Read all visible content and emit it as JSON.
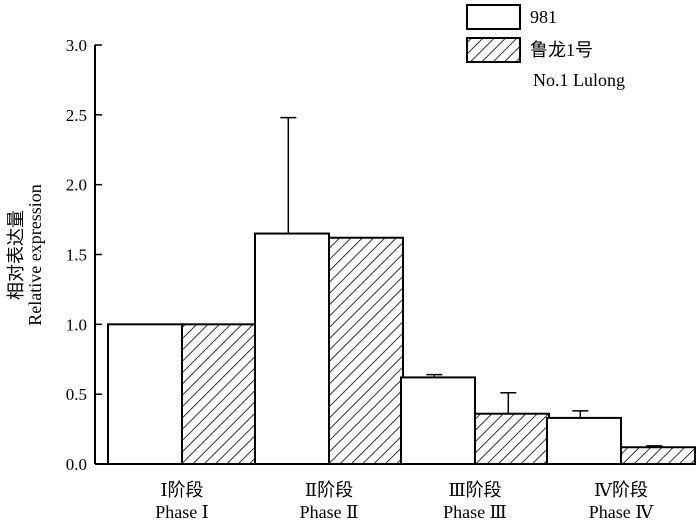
{
  "chart_data": {
    "type": "bar",
    "categories": [
      {
        "line1": "Ⅰ阶段",
        "line2": "Phase Ⅰ"
      },
      {
        "line1": "Ⅱ阶段",
        "line2": "Phase Ⅱ"
      },
      {
        "line1": "Ⅲ阶段",
        "line2": "Phase Ⅲ"
      },
      {
        "line1": "Ⅳ阶段",
        "line2": "Phase Ⅳ"
      }
    ],
    "series": [
      {
        "name": "981",
        "fill": "open",
        "values": [
          1.0,
          1.65,
          0.62,
          0.33
        ],
        "errors": [
          0.0,
          0.83,
          0.02,
          0.05
        ]
      },
      {
        "name": "鲁龙1号",
        "name_line2": "No.1 Lulong",
        "fill": "hatched",
        "values": [
          1.0,
          1.62,
          0.36,
          0.12
        ],
        "errors": [
          0.0,
          0.0,
          0.15,
          0.01
        ]
      }
    ],
    "ylabel_cn": "相对表达量",
    "ylabel_en": "Relative expression",
    "ylim": [
      0,
      3.0
    ],
    "yticks": [
      "0.0",
      "0.5",
      "1.0",
      "1.5",
      "2.0",
      "2.5",
      "3.0"
    ],
    "grid": false,
    "legend_position": "top-right"
  }
}
